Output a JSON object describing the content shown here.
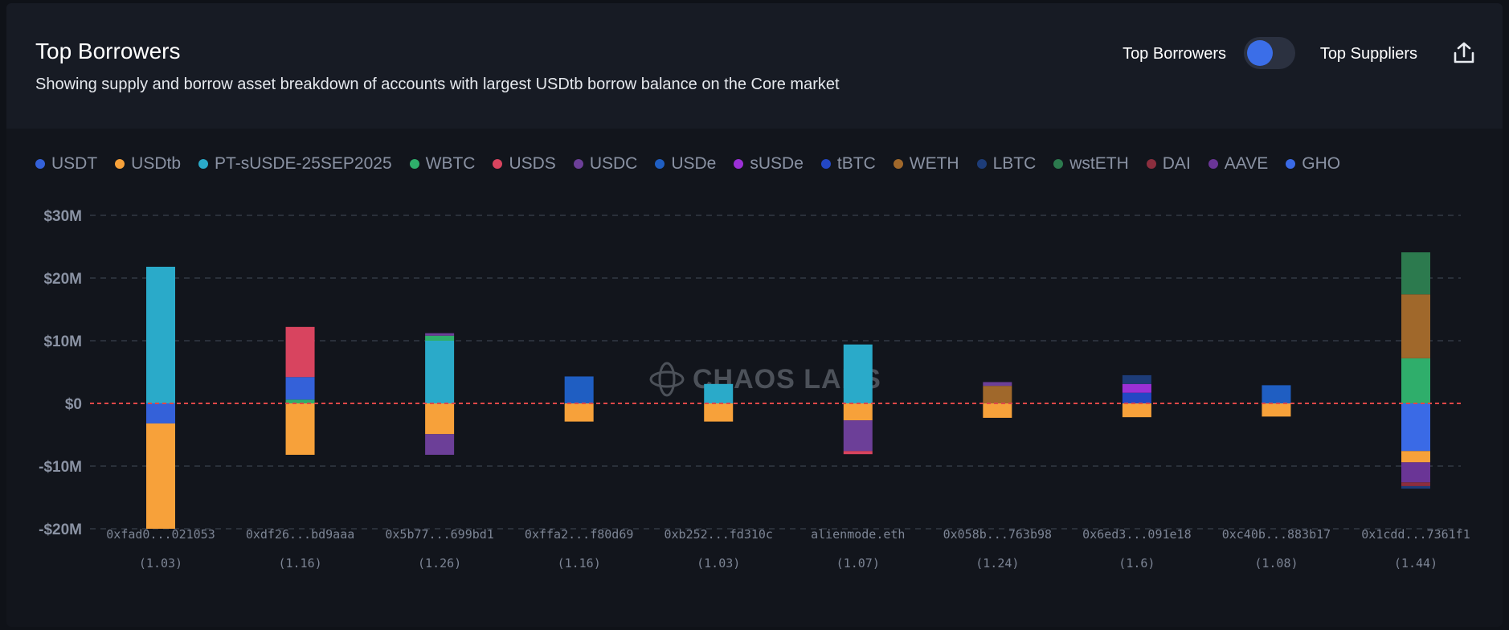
{
  "header": {
    "title": "Top Borrowers",
    "subtitle": "Showing supply and borrow asset breakdown of accounts with largest USDtb borrow balance on the Core market",
    "toggle_left": "Top Borrowers",
    "toggle_right": "Top Suppliers",
    "export_icon": "share-upload-icon"
  },
  "watermark": "CHAOS LABS",
  "legend": [
    {
      "name": "USDT",
      "color": "#3461d9"
    },
    {
      "name": "USDtb",
      "color": "#f7a13a"
    },
    {
      "name": "PT-sUSDE-25SEP2025",
      "color": "#2aaac9"
    },
    {
      "name": "WBTC",
      "color": "#2fae6b"
    },
    {
      "name": "USDS",
      "color": "#d8445f"
    },
    {
      "name": "USDC",
      "color": "#6c3f98"
    },
    {
      "name": "USDe",
      "color": "#1f5ec2"
    },
    {
      "name": "sUSDe",
      "color": "#9b30d6"
    },
    {
      "name": "tBTC",
      "color": "#2347c4"
    },
    {
      "name": "WETH",
      "color": "#a0682b"
    },
    {
      "name": "LBTC",
      "color": "#1d3c78"
    },
    {
      "name": "wstETH",
      "color": "#2c7a4e"
    },
    {
      "name": "DAI",
      "color": "#8b2e3e"
    },
    {
      "name": "AAVE",
      "color": "#6a3596"
    },
    {
      "name": "GHO",
      "color": "#3a6ae6"
    }
  ],
  "chart_data": {
    "type": "bar",
    "stacked": true,
    "ylim": [
      -20,
      30
    ],
    "yticks": [
      -20,
      -10,
      0,
      10,
      20,
      30
    ],
    "ytick_labels": [
      "-$20M",
      "-$10M",
      "$0",
      "$10M",
      "$20M",
      "$30M"
    ],
    "zero_line": "dashed red",
    "grid": true,
    "categories": [
      "0xfad0...021053",
      "0xdf26...bd9aaa",
      "0x5b77...699bd1",
      "0xffa2...f80d69",
      "0xb252...fd310c",
      "alienmode.eth",
      "0x058b...763b98",
      "0x6ed3...091e18",
      "0xc40b...883b17",
      "0x1cdd...7361f1"
    ],
    "sublabels": [
      "(1.03)",
      "(1.16)",
      "(1.26)",
      "(1.16)",
      "(1.03)",
      "(1.07)",
      "(1.24)",
      "(1.6)",
      "(1.08)",
      "(1.44)"
    ],
    "bars": [
      {
        "supply": [
          {
            "asset": "PT-sUSDE-25SEP2025",
            "value": 21.8
          }
        ],
        "borrow": [
          {
            "asset": "USDT",
            "value": 3.2
          },
          {
            "asset": "USDtb",
            "value": 16.8
          }
        ]
      },
      {
        "supply": [
          {
            "asset": "WBTC",
            "value": 0.6
          },
          {
            "asset": "USDT",
            "value": 3.6
          },
          {
            "asset": "USDS",
            "value": 8.0
          }
        ],
        "borrow": [
          {
            "asset": "USDtb",
            "value": 8.2
          }
        ]
      },
      {
        "supply": [
          {
            "asset": "PT-sUSDE-25SEP2025",
            "value": 10.0
          },
          {
            "asset": "WBTC",
            "value": 0.8
          },
          {
            "asset": "USDC",
            "value": 0.4
          }
        ],
        "borrow": [
          {
            "asset": "USDtb",
            "value": 4.9
          },
          {
            "asset": "USDC",
            "value": 3.3
          }
        ]
      },
      {
        "supply": [
          {
            "asset": "USDe",
            "value": 4.3
          }
        ],
        "borrow": [
          {
            "asset": "USDtb",
            "value": 2.9
          }
        ]
      },
      {
        "supply": [
          {
            "asset": "PT-sUSDE-25SEP2025",
            "value": 3.1
          }
        ],
        "borrow": [
          {
            "asset": "USDtb",
            "value": 2.9
          }
        ]
      },
      {
        "supply": [
          {
            "asset": "PT-sUSDE-25SEP2025",
            "value": 9.4
          }
        ],
        "borrow": [
          {
            "asset": "USDtb",
            "value": 2.7
          },
          {
            "asset": "USDC",
            "value": 4.9
          },
          {
            "asset": "USDS",
            "value": 0.5
          }
        ]
      },
      {
        "supply": [
          {
            "asset": "WETH",
            "value": 2.8
          },
          {
            "asset": "USDC",
            "value": 0.6
          }
        ],
        "borrow": [
          {
            "asset": "USDtb",
            "value": 2.3
          }
        ]
      },
      {
        "supply": [
          {
            "asset": "tBTC",
            "value": 1.7
          },
          {
            "asset": "sUSDe",
            "value": 1.4
          },
          {
            "asset": "LBTC",
            "value": 1.4
          }
        ],
        "borrow": [
          {
            "asset": "USDtb",
            "value": 2.2
          }
        ]
      },
      {
        "supply": [
          {
            "asset": "USDe",
            "value": 2.9
          }
        ],
        "borrow": [
          {
            "asset": "USDtb",
            "value": 2.1
          }
        ]
      },
      {
        "supply": [
          {
            "asset": "WBTC",
            "value": 7.2
          },
          {
            "asset": "WETH",
            "value": 10.2
          },
          {
            "asset": "wstETH",
            "value": 6.7
          }
        ],
        "borrow": [
          {
            "asset": "GHO",
            "value": 7.6
          },
          {
            "asset": "USDtb",
            "value": 1.8
          },
          {
            "asset": "AAVE",
            "value": 3.2
          },
          {
            "asset": "DAI",
            "value": 0.6
          },
          {
            "asset": "LBTC",
            "value": 0.4
          }
        ]
      }
    ]
  }
}
